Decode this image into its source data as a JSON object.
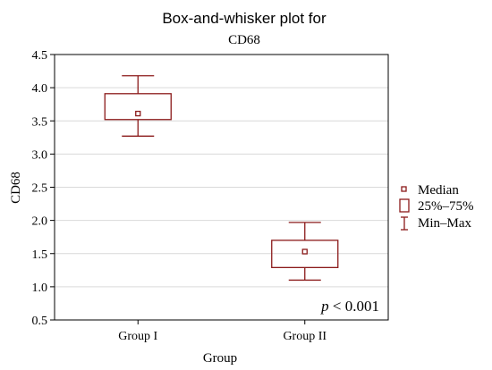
{
  "chart_data": {
    "type": "box",
    "title": "Box-and-whisker plot for",
    "subtitle": "CD68",
    "xlabel": "Group",
    "ylabel": "CD68",
    "ylim": [
      0.5,
      4.5
    ],
    "yticks": [
      "0.5",
      "1.0",
      "1.5",
      "2.0",
      "2.5",
      "3.0",
      "3.5",
      "4.0",
      "4.5"
    ],
    "ytick_values": [
      0.5,
      1.0,
      1.5,
      2.0,
      2.5,
      3.0,
      3.5,
      4.0,
      4.5
    ],
    "categories": [
      "Group I",
      "Group II"
    ],
    "boxes": [
      {
        "category": "Group I",
        "min": 3.27,
        "q1": 3.52,
        "median": 3.61,
        "q3": 3.91,
        "max": 4.18
      },
      {
        "category": "Group II",
        "min": 1.1,
        "q1": 1.29,
        "median": 1.53,
        "q3": 1.7,
        "max": 1.97
      }
    ],
    "legend": {
      "position": "right",
      "entries": [
        {
          "label": "Median",
          "symbol": "small-square"
        },
        {
          "label": "25%–75%",
          "symbol": "box"
        },
        {
          "label": "Min–Max",
          "symbol": "whisker"
        }
      ]
    },
    "annotation": {
      "italic": "p",
      "rest": " < 0.001"
    },
    "grid": "horizontal",
    "colors": {
      "series": "#8b1a1a",
      "grid": "#d9d9d9",
      "frame": "#000000"
    }
  }
}
